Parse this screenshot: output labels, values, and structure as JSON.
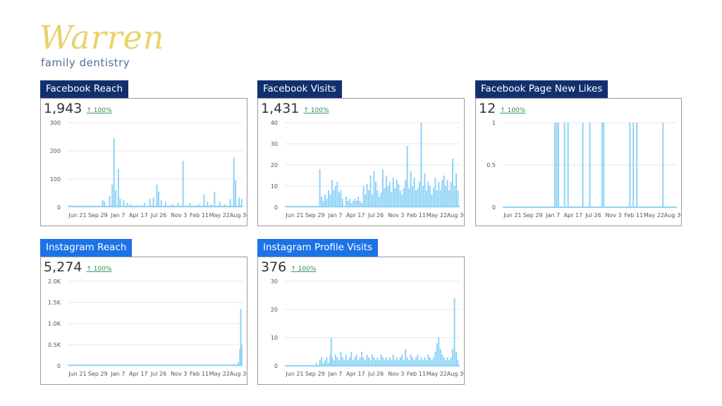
{
  "brand": {
    "script": "Warren",
    "subtitle": "family dentistry",
    "colors": {
      "script": "#e9d26b",
      "subtitle": "#4f6f93"
    }
  },
  "colors": {
    "facebook_header": "#12306e",
    "instagram_header": "#1c73e8",
    "series": "#8fd3f6",
    "change_positive": "#2e8b57"
  },
  "x_ticks": [
    "Jun 21",
    "Sep 29",
    "Jan 7",
    "Apr 17",
    "Jul 26",
    "Nov 3",
    "Feb 11",
    "May 22",
    "Aug 30"
  ],
  "panels": [
    {
      "id": "fb-reach",
      "title": "Facebook Reach",
      "total": "1,943",
      "change": "↑ 100%"
    },
    {
      "id": "fb-visits",
      "title": "Facebook Visits",
      "total": "1,431",
      "change": "↑ 100%"
    },
    {
      "id": "fb-likes",
      "title": "Facebook Page New Likes",
      "total": "12",
      "change": "↑ 100%"
    },
    {
      "id": "ig-reach",
      "title": "Instagram Reach",
      "total": "5,274",
      "change": "↑ 100%"
    },
    {
      "id": "ig-profile",
      "title": "Instagram Profile Visits",
      "total": "376",
      "change": "↑ 100%"
    }
  ],
  "chart_data": [
    {
      "type": "bar",
      "y_ticks": [
        "0",
        "100",
        "200",
        "300"
      ],
      "ylim": [
        0,
        300
      ],
      "spikes": [
        [
          0.2,
          25
        ],
        [
          0.21,
          20
        ],
        [
          0.24,
          40
        ],
        [
          0.255,
          80
        ],
        [
          0.265,
          245
        ],
        [
          0.275,
          60
        ],
        [
          0.29,
          135
        ],
        [
          0.3,
          30
        ],
        [
          0.32,
          25
        ],
        [
          0.34,
          15
        ],
        [
          0.36,
          10
        ],
        [
          0.4,
          8
        ],
        [
          0.44,
          15
        ],
        [
          0.47,
          30
        ],
        [
          0.49,
          35
        ],
        [
          0.51,
          80
        ],
        [
          0.52,
          55
        ],
        [
          0.535,
          25
        ],
        [
          0.56,
          20
        ],
        [
          0.6,
          10
        ],
        [
          0.63,
          15
        ],
        [
          0.66,
          165
        ],
        [
          0.7,
          15
        ],
        [
          0.75,
          10
        ],
        [
          0.78,
          45
        ],
        [
          0.8,
          20
        ],
        [
          0.82,
          10
        ],
        [
          0.84,
          55
        ],
        [
          0.87,
          20
        ],
        [
          0.9,
          10
        ],
        [
          0.93,
          30
        ],
        [
          0.95,
          175
        ],
        [
          0.96,
          95
        ],
        [
          0.98,
          35
        ],
        [
          0.995,
          30
        ]
      ],
      "baseline": 3
    },
    {
      "type": "bar",
      "y_ticks": [
        "0",
        "10",
        "20",
        "30",
        "40"
      ],
      "ylim": [
        0,
        40
      ],
      "spikes": [
        [
          0.2,
          18
        ],
        [
          0.21,
          5
        ],
        [
          0.22,
          3
        ],
        [
          0.23,
          6
        ],
        [
          0.24,
          4
        ],
        [
          0.25,
          8
        ],
        [
          0.26,
          6
        ],
        [
          0.27,
          13
        ],
        [
          0.28,
          8
        ],
        [
          0.29,
          10
        ],
        [
          0.3,
          12
        ],
        [
          0.31,
          7
        ],
        [
          0.32,
          8
        ],
        [
          0.33,
          4
        ],
        [
          0.35,
          5
        ],
        [
          0.36,
          3
        ],
        [
          0.37,
          4
        ],
        [
          0.38,
          2
        ],
        [
          0.39,
          3
        ],
        [
          0.4,
          4
        ],
        [
          0.41,
          3
        ],
        [
          0.42,
          5
        ],
        [
          0.43,
          3
        ],
        [
          0.44,
          2
        ],
        [
          0.45,
          10
        ],
        [
          0.46,
          6
        ],
        [
          0.47,
          11
        ],
        [
          0.48,
          8
        ],
        [
          0.49,
          15
        ],
        [
          0.5,
          6
        ],
        [
          0.51,
          17
        ],
        [
          0.52,
          12
        ],
        [
          0.53,
          8
        ],
        [
          0.54,
          5
        ],
        [
          0.55,
          7
        ],
        [
          0.56,
          18
        ],
        [
          0.57,
          9
        ],
        [
          0.58,
          15
        ],
        [
          0.59,
          10
        ],
        [
          0.6,
          12
        ],
        [
          0.61,
          7
        ],
        [
          0.62,
          14
        ],
        [
          0.63,
          9
        ],
        [
          0.64,
          13
        ],
        [
          0.65,
          11
        ],
        [
          0.66,
          8
        ],
        [
          0.67,
          6
        ],
        [
          0.68,
          9
        ],
        [
          0.69,
          13
        ],
        [
          0.7,
          29
        ],
        [
          0.71,
          9
        ],
        [
          0.72,
          17
        ],
        [
          0.73,
          10
        ],
        [
          0.74,
          14
        ],
        [
          0.75,
          8
        ],
        [
          0.76,
          9
        ],
        [
          0.77,
          12
        ],
        [
          0.78,
          40
        ],
        [
          0.79,
          10
        ],
        [
          0.8,
          16
        ],
        [
          0.81,
          8
        ],
        [
          0.82,
          12
        ],
        [
          0.83,
          10
        ],
        [
          0.84,
          6
        ],
        [
          0.85,
          9
        ],
        [
          0.86,
          14
        ],
        [
          0.87,
          8
        ],
        [
          0.88,
          12
        ],
        [
          0.89,
          8
        ],
        [
          0.9,
          13
        ],
        [
          0.91,
          15
        ],
        [
          0.92,
          10
        ],
        [
          0.93,
          13
        ],
        [
          0.94,
          8
        ],
        [
          0.95,
          12
        ],
        [
          0.96,
          23
        ],
        [
          0.97,
          10
        ],
        [
          0.98,
          16
        ],
        [
          0.99,
          8
        ]
      ],
      "baseline": 0.3
    },
    {
      "type": "bar",
      "y_ticks": [
        "0",
        "0.5",
        "1"
      ],
      "ylim": [
        0,
        1
      ],
      "spikes": [
        [
          0.3,
          1
        ],
        [
          0.31,
          1
        ],
        [
          0.32,
          1
        ],
        [
          0.355,
          1
        ],
        [
          0.375,
          1
        ],
        [
          0.46,
          1
        ],
        [
          0.5,
          1
        ],
        [
          0.57,
          1
        ],
        [
          0.58,
          1
        ],
        [
          0.73,
          1
        ],
        [
          0.75,
          1
        ],
        [
          0.77,
          1
        ],
        [
          0.92,
          1
        ]
      ],
      "baseline": 0
    },
    {
      "type": "bar",
      "y_ticks": [
        "0",
        "0.5K",
        "1.0K",
        "1.5K",
        "2.0K"
      ],
      "ylim": [
        0,
        2000
      ],
      "spikes": [
        [
          0.1,
          15
        ],
        [
          0.15,
          20
        ],
        [
          0.2,
          15
        ],
        [
          0.25,
          20
        ],
        [
          0.3,
          25
        ],
        [
          0.35,
          20
        ],
        [
          0.4,
          25
        ],
        [
          0.45,
          20
        ],
        [
          0.5,
          25
        ],
        [
          0.55,
          30
        ],
        [
          0.6,
          20
        ],
        [
          0.65,
          25
        ],
        [
          0.7,
          20
        ],
        [
          0.75,
          20
        ],
        [
          0.8,
          25
        ],
        [
          0.85,
          20
        ],
        [
          0.9,
          25
        ],
        [
          0.95,
          40
        ],
        [
          0.975,
          80
        ],
        [
          0.985,
          400
        ],
        [
          0.99,
          1350
        ],
        [
          0.995,
          500
        ]
      ],
      "baseline": 15
    },
    {
      "type": "bar",
      "y_ticks": [
        "0",
        "10",
        "20",
        "30"
      ],
      "ylim": [
        0,
        30
      ],
      "spikes": [
        [
          0.18,
          1
        ],
        [
          0.2,
          2
        ],
        [
          0.21,
          3
        ],
        [
          0.22,
          1
        ],
        [
          0.23,
          2
        ],
        [
          0.24,
          3
        ],
        [
          0.25,
          1
        ],
        [
          0.26,
          4
        ],
        [
          0.265,
          10
        ],
        [
          0.27,
          3
        ],
        [
          0.28,
          2
        ],
        [
          0.29,
          4
        ],
        [
          0.3,
          3
        ],
        [
          0.31,
          2
        ],
        [
          0.32,
          5
        ],
        [
          0.33,
          3
        ],
        [
          0.34,
          2
        ],
        [
          0.35,
          4
        ],
        [
          0.36,
          2
        ],
        [
          0.37,
          3
        ],
        [
          0.38,
          5
        ],
        [
          0.39,
          2
        ],
        [
          0.4,
          3
        ],
        [
          0.41,
          4
        ],
        [
          0.42,
          2
        ],
        [
          0.43,
          3
        ],
        [
          0.44,
          5
        ],
        [
          0.45,
          3
        ],
        [
          0.46,
          2
        ],
        [
          0.47,
          4
        ],
        [
          0.48,
          3
        ],
        [
          0.49,
          2
        ],
        [
          0.5,
          4
        ],
        [
          0.51,
          3
        ],
        [
          0.52,
          2
        ],
        [
          0.53,
          3
        ],
        [
          0.54,
          2
        ],
        [
          0.55,
          4
        ],
        [
          0.56,
          3
        ],
        [
          0.57,
          2
        ],
        [
          0.58,
          3
        ],
        [
          0.59,
          2
        ],
        [
          0.6,
          3
        ],
        [
          0.61,
          2
        ],
        [
          0.62,
          4
        ],
        [
          0.63,
          2
        ],
        [
          0.64,
          3
        ],
        [
          0.65,
          2
        ],
        [
          0.66,
          3
        ],
        [
          0.67,
          4
        ],
        [
          0.68,
          2
        ],
        [
          0.69,
          6
        ],
        [
          0.7,
          3
        ],
        [
          0.71,
          2
        ],
        [
          0.72,
          4
        ],
        [
          0.73,
          3
        ],
        [
          0.74,
          2
        ],
        [
          0.75,
          3
        ],
        [
          0.76,
          4
        ],
        [
          0.77,
          2
        ],
        [
          0.78,
          3
        ],
        [
          0.79,
          2
        ],
        [
          0.8,
          3
        ],
        [
          0.81,
          2
        ],
        [
          0.82,
          4
        ],
        [
          0.83,
          3
        ],
        [
          0.84,
          2
        ],
        [
          0.85,
          3
        ],
        [
          0.86,
          5
        ],
        [
          0.87,
          8
        ],
        [
          0.88,
          10
        ],
        [
          0.89,
          6
        ],
        [
          0.9,
          4
        ],
        [
          0.91,
          3
        ],
        [
          0.92,
          2
        ],
        [
          0.93,
          3
        ],
        [
          0.94,
          2
        ],
        [
          0.95,
          3
        ],
        [
          0.96,
          6
        ],
        [
          0.97,
          24
        ],
        [
          0.98,
          5
        ],
        [
          0.99,
          2
        ]
      ],
      "baseline": 0
    }
  ]
}
